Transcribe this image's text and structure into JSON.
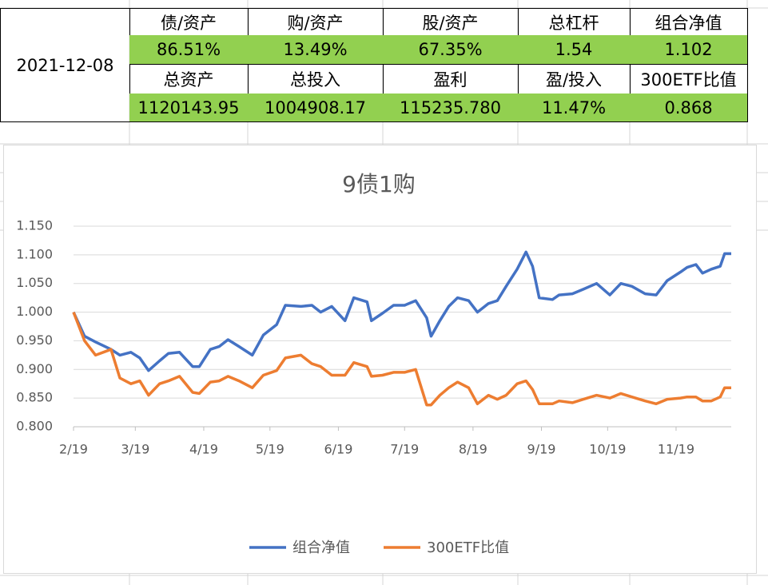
{
  "table": {
    "date": "2021-12-08",
    "rows": [
      [
        "债/资产",
        "购/资产",
        "股/资产",
        "总杠杆",
        "组合净值"
      ],
      [
        "86.51%",
        "13.49%",
        "67.35%",
        "1.54",
        "1.102"
      ],
      [
        "总资产",
        "总投入",
        "盈利",
        "盈/投入",
        "300ETF比值"
      ],
      [
        "1120143.95",
        "1004908.17",
        "115235.780",
        "11.47%",
        "0.868"
      ]
    ]
  },
  "chart_data": {
    "type": "line",
    "title": "9债1购",
    "x": [
      0,
      5,
      10,
      17,
      21,
      26,
      30,
      34,
      39,
      43,
      48,
      54,
      57,
      62,
      66,
      70,
      75,
      81,
      86,
      92,
      96,
      103,
      108,
      112,
      117,
      123,
      127,
      133,
      135,
      140,
      145,
      150,
      155,
      160,
      162,
      166,
      170,
      174,
      179,
      183,
      188,
      192,
      196,
      201,
      205,
      208,
      211,
      217,
      220,
      226,
      231,
      237,
      243,
      248,
      253,
      259,
      264,
      269,
      275,
      278,
      282,
      285,
      289,
      293,
      295,
      298
    ],
    "series": [
      {
        "name": "组合净值",
        "color": "#4472c4",
        "values": [
          1.0,
          0.958,
          0.948,
          0.935,
          0.925,
          0.93,
          0.92,
          0.898,
          0.915,
          0.928,
          0.93,
          0.905,
          0.905,
          0.935,
          0.94,
          0.952,
          0.94,
          0.925,
          0.96,
          0.978,
          1.012,
          1.01,
          1.012,
          1.0,
          1.01,
          0.985,
          1.025,
          1.018,
          0.985,
          0.998,
          1.012,
          1.012,
          1.02,
          0.99,
          0.958,
          0.985,
          1.01,
          1.025,
          1.02,
          1.0,
          1.015,
          1.02,
          1.045,
          1.075,
          1.105,
          1.08,
          1.025,
          1.022,
          1.03,
          1.032,
          1.04,
          1.05,
          1.03,
          1.05,
          1.045,
          1.032,
          1.03,
          1.055,
          1.07,
          1.078,
          1.083,
          1.068,
          1.075,
          1.08,
          1.102,
          1.102
        ]
      },
      {
        "name": "300ETF比值",
        "color": "#ed7d31",
        "values": [
          1.0,
          0.95,
          0.925,
          0.935,
          0.885,
          0.875,
          0.88,
          0.855,
          0.875,
          0.88,
          0.888,
          0.86,
          0.858,
          0.878,
          0.88,
          0.888,
          0.88,
          0.868,
          0.89,
          0.898,
          0.92,
          0.925,
          0.91,
          0.905,
          0.89,
          0.89,
          0.912,
          0.905,
          0.888,
          0.89,
          0.895,
          0.895,
          0.9,
          0.838,
          0.838,
          0.855,
          0.868,
          0.878,
          0.868,
          0.84,
          0.855,
          0.848,
          0.855,
          0.875,
          0.88,
          0.865,
          0.84,
          0.84,
          0.845,
          0.842,
          0.848,
          0.855,
          0.85,
          0.858,
          0.852,
          0.845,
          0.84,
          0.848,
          0.85,
          0.852,
          0.852,
          0.845,
          0.845,
          0.852,
          0.868,
          0.868
        ]
      }
    ],
    "xlim": [
      0,
      298
    ],
    "xticks": [
      {
        "value": 0,
        "label": "2/19"
      },
      {
        "value": 28,
        "label": "3/19"
      },
      {
        "value": 59,
        "label": "4/19"
      },
      {
        "value": 89,
        "label": "5/19"
      },
      {
        "value": 120,
        "label": "6/19"
      },
      {
        "value": 150,
        "label": "7/19"
      },
      {
        "value": 181,
        "label": "8/19"
      },
      {
        "value": 212,
        "label": "9/19"
      },
      {
        "value": 242,
        "label": "10/19"
      },
      {
        "value": 273,
        "label": "11/19"
      }
    ],
    "ylim": [
      0.8,
      1.15
    ],
    "yticks": [
      {
        "value": 0.8,
        "label": "0.800"
      },
      {
        "value": 0.85,
        "label": "0.850"
      },
      {
        "value": 0.9,
        "label": "0.900"
      },
      {
        "value": 0.95,
        "label": "0.950"
      },
      {
        "value": 1.0,
        "label": "1.000"
      },
      {
        "value": 1.05,
        "label": "1.050"
      },
      {
        "value": 1.1,
        "label": "1.100"
      },
      {
        "value": 1.15,
        "label": "1.150"
      }
    ],
    "grid": true,
    "legend": "bottom"
  }
}
